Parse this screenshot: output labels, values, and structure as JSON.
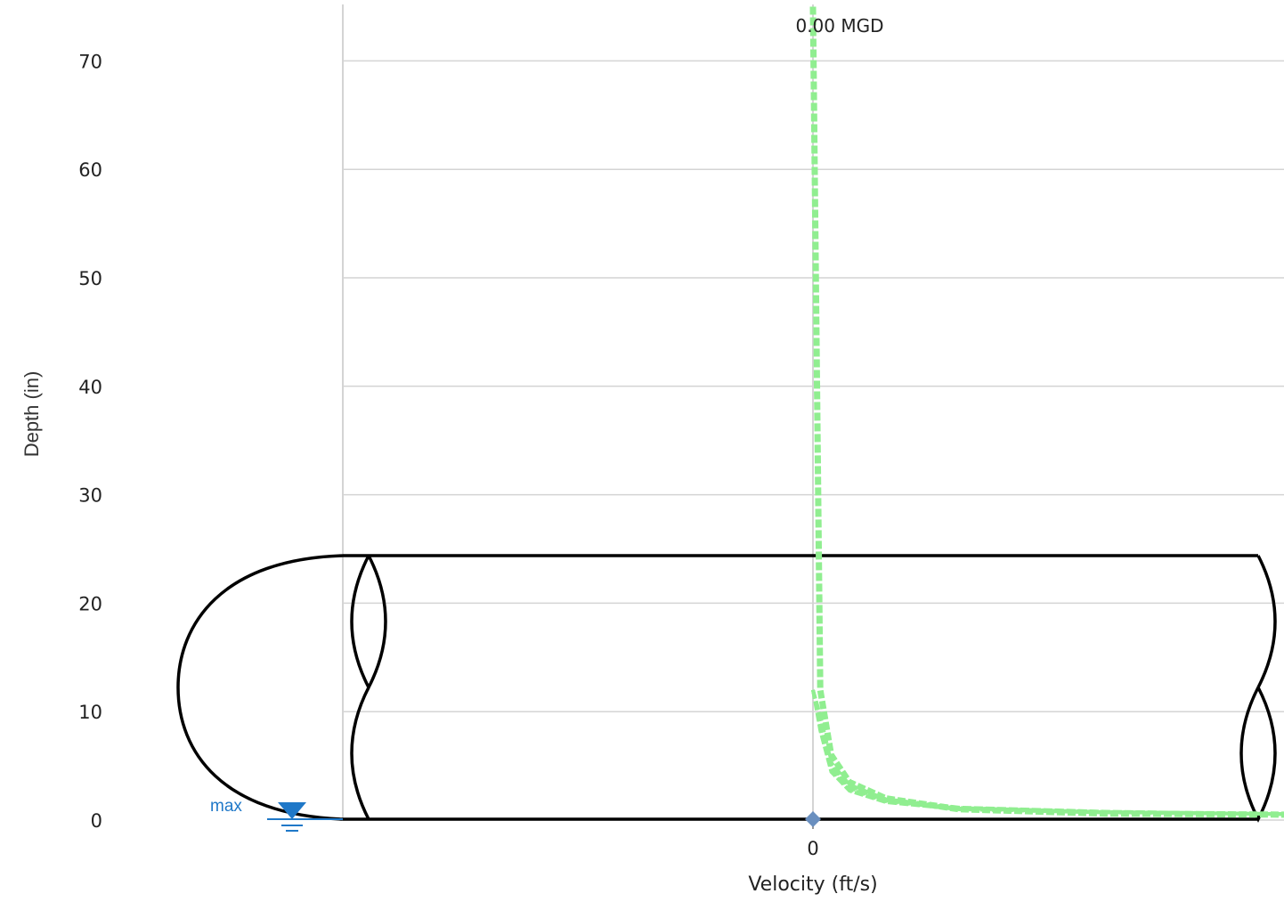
{
  "chart_data": {
    "type": "line",
    "title": "",
    "xlabel": "Velocity (ft/s)",
    "ylabel": "Depth (in)",
    "y_ticks": [
      0,
      10,
      20,
      30,
      40,
      50,
      60,
      70
    ],
    "x_ticks": [
      0
    ],
    "ylim": [
      0,
      75
    ],
    "grid": true,
    "pipe_diameter_in": 24.5,
    "flow_label": "0.00 MGD",
    "measured_point": {
      "x": 0,
      "y": 0
    },
    "water_level_marker": {
      "label": "max",
      "depth_in": 0
    },
    "velocity_profile_color": "#90ee90",
    "marker_color": "#1f78c8",
    "point_color": "#6a8fbf",
    "series": [
      {
        "name": "",
        "style": "velocity-profile",
        "x": [
          0,
          0.1,
          0.25,
          0.5,
          1,
          2,
          4,
          6.5
        ],
        "y": [
          75,
          12,
          6,
          3.5,
          2,
          1,
          0.6,
          0.5
        ]
      }
    ]
  }
}
